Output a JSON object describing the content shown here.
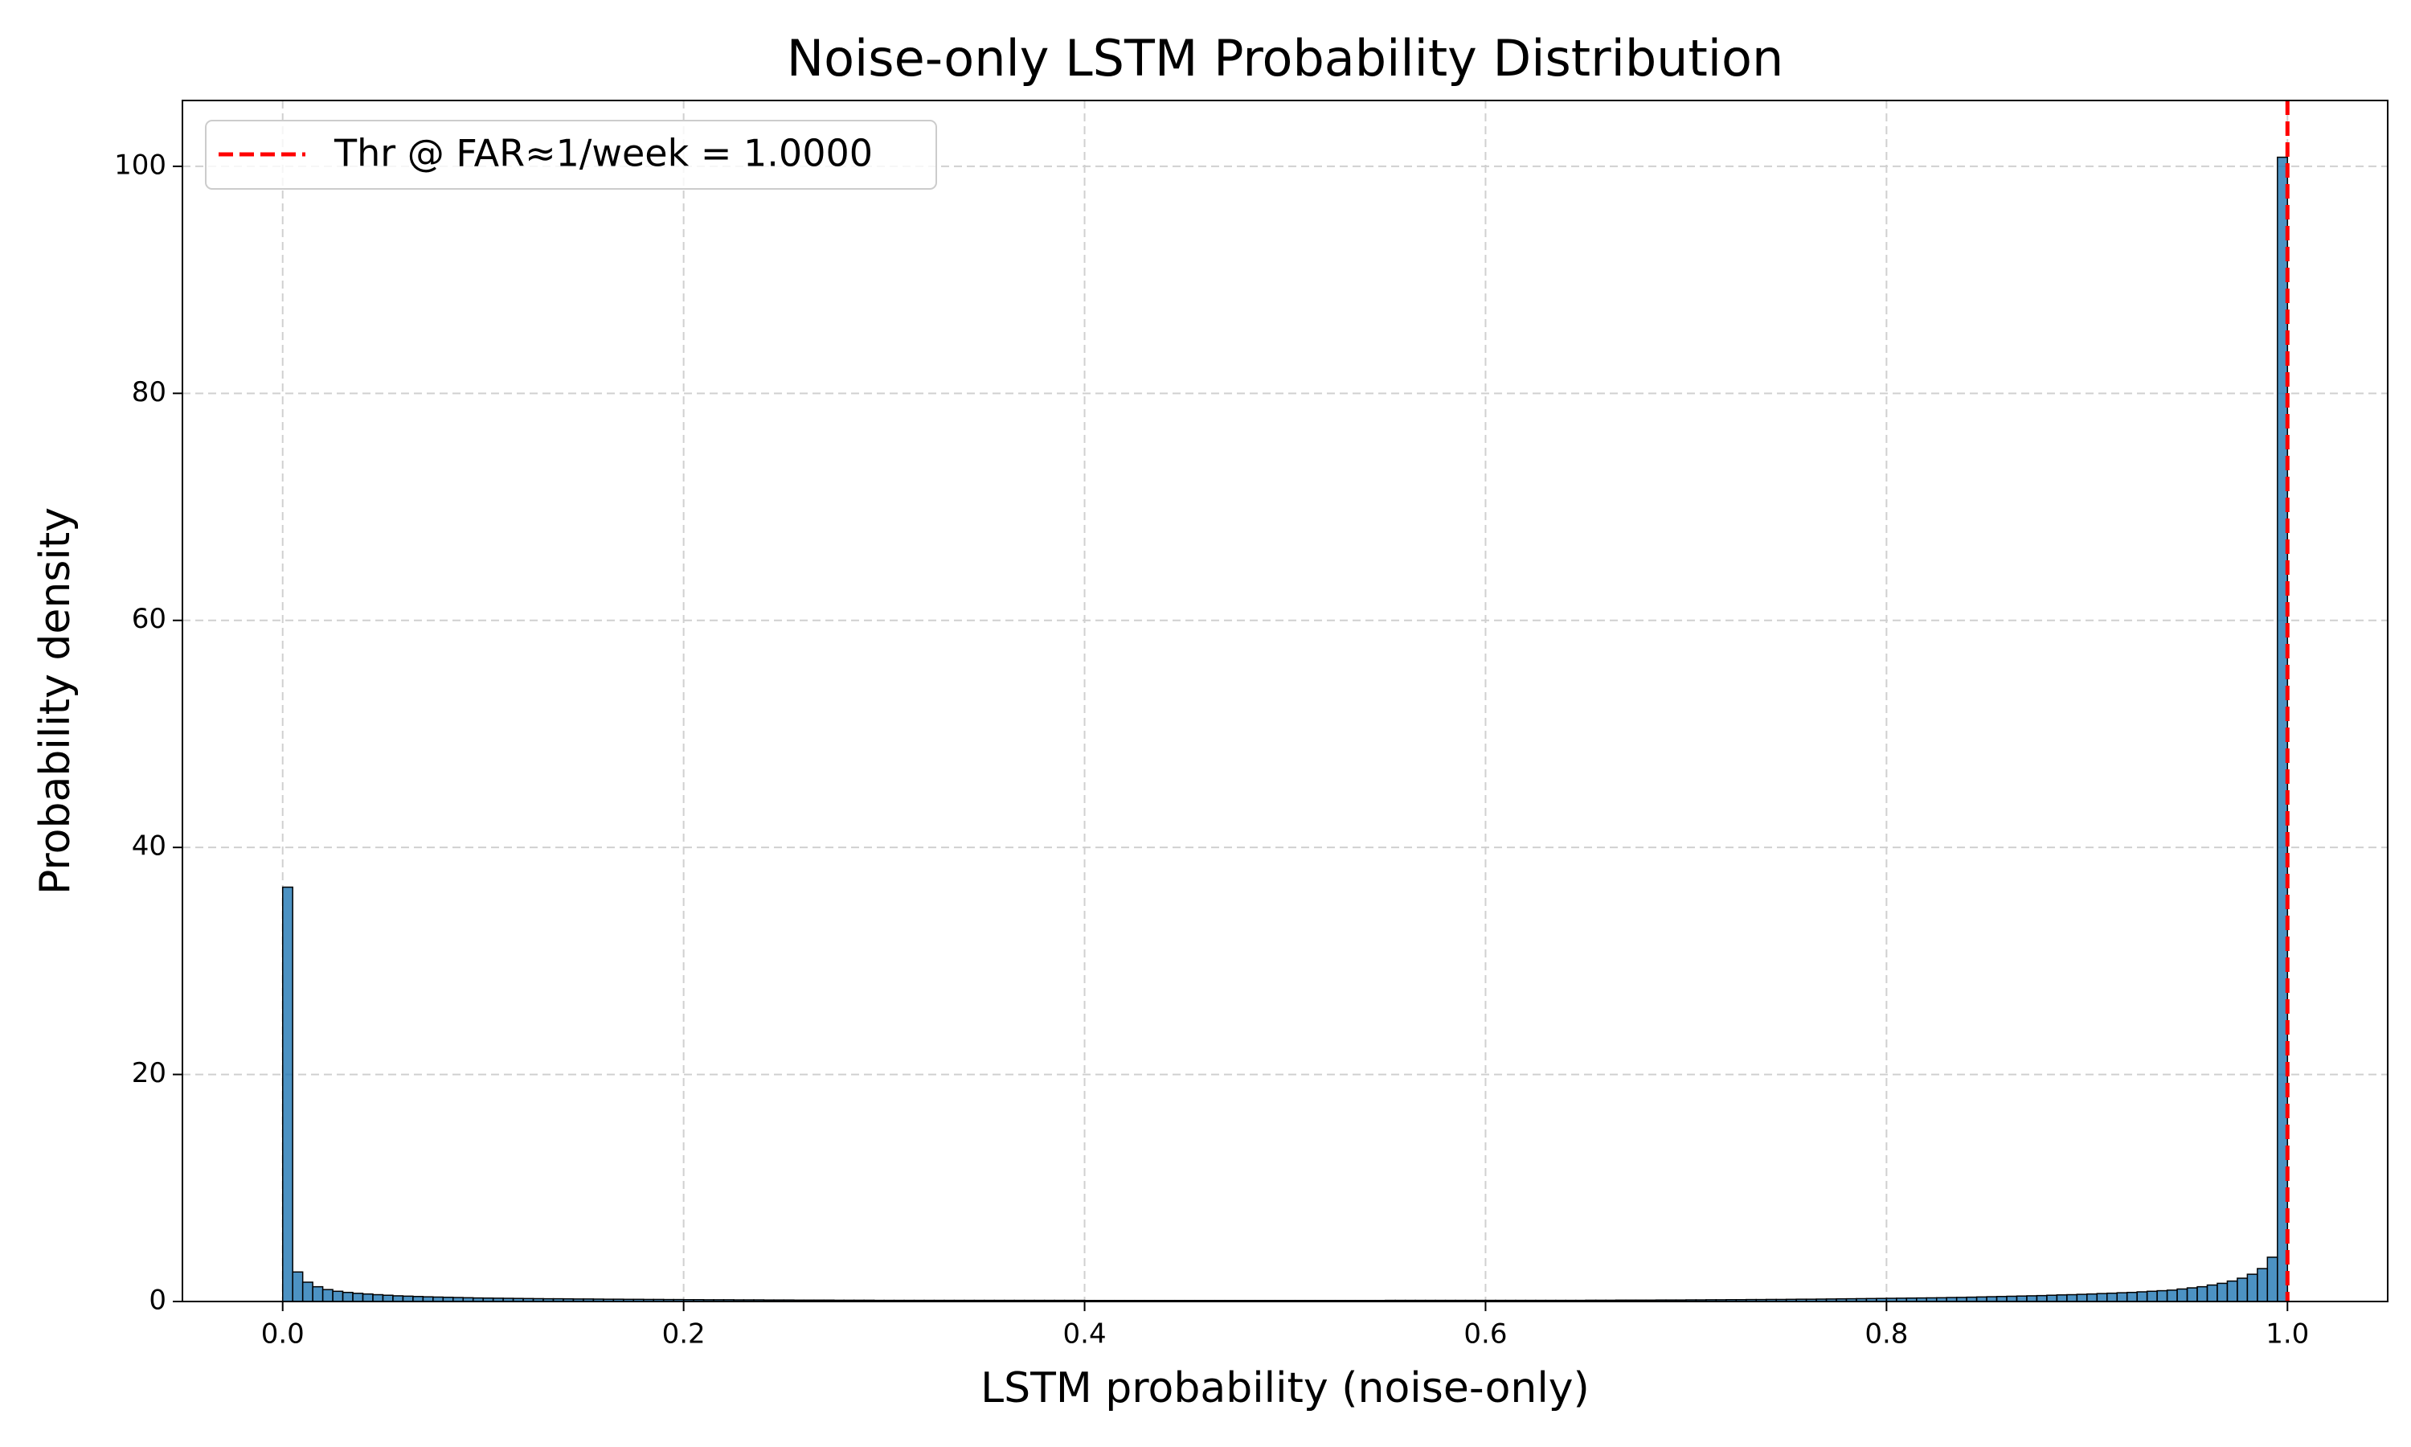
{
  "chart_data": {
    "type": "histogram",
    "title": "Noise-only LSTM Probability Distribution",
    "x_label": "LSTM probability (noise-only)",
    "y_label": "Probability density",
    "color": "#1f77b4",
    "edgecolor": "#000000",
    "grid": true,
    "legend_loc": "upper-left",
    "threshold": {
      "x": 1.0,
      "label": "Thr @ FAR≈1/week = 1.0000",
      "color": "#ff0000"
    },
    "xlim": [
      -0.05,
      1.05
    ],
    "ylim": [
      0,
      105.8
    ],
    "xticks": [
      {
        "value": 0,
        "label": "0.0"
      },
      0.2,
      0.4,
      0.6,
      0.8,
      {
        "value": 1,
        "label": "1.0"
      }
    ],
    "yticks": [
      0,
      20,
      40,
      60,
      80,
      100
    ],
    "bins": [
      0,
      0.005,
      0.01,
      0.015,
      0.02,
      0.025,
      0.03,
      0.035,
      0.04,
      0.045,
      0.05,
      0.055,
      0.06,
      0.065,
      0.07,
      0.075,
      0.08,
      0.085,
      0.09,
      0.095,
      0.1,
      0.105,
      0.11,
      0.115,
      0.12,
      0.125,
      0.13,
      0.135,
      0.14,
      0.145,
      0.15,
      0.155,
      0.16,
      0.165,
      0.17,
      0.175,
      0.18,
      0.185,
      0.19,
      0.195,
      0.2,
      0.205,
      0.21,
      0.215,
      0.22,
      0.225,
      0.23,
      0.235,
      0.24,
      0.245,
      0.25,
      0.255,
      0.26,
      0.265,
      0.27,
      0.275,
      0.28,
      0.285,
      0.29,
      0.295,
      0.3,
      0.305,
      0.31,
      0.315,
      0.32,
      0.325,
      0.33,
      0.335,
      0.34,
      0.345,
      0.35,
      0.355,
      0.36,
      0.365,
      0.37,
      0.375,
      0.38,
      0.385,
      0.39,
      0.395,
      0.4,
      0.405,
      0.41,
      0.415,
      0.42,
      0.425,
      0.43,
      0.435,
      0.44,
      0.445,
      0.45,
      0.455,
      0.46,
      0.465,
      0.47,
      0.475,
      0.48,
      0.485,
      0.49,
      0.495,
      0.5,
      0.505,
      0.51,
      0.515,
      0.52,
      0.525,
      0.53,
      0.535,
      0.54,
      0.545,
      0.55,
      0.555,
      0.56,
      0.565,
      0.57,
      0.575,
      0.58,
      0.585,
      0.59,
      0.595,
      0.6,
      0.605,
      0.61,
      0.615,
      0.62,
      0.625,
      0.63,
      0.635,
      0.64,
      0.645,
      0.65,
      0.655,
      0.66,
      0.665,
      0.67,
      0.675,
      0.68,
      0.685,
      0.69,
      0.695,
      0.7,
      0.705,
      0.71,
      0.715,
      0.72,
      0.725,
      0.73,
      0.735,
      0.74,
      0.745,
      0.75,
      0.755,
      0.76,
      0.765,
      0.77,
      0.775,
      0.78,
      0.785,
      0.79,
      0.795,
      0.8,
      0.805,
      0.81,
      0.815,
      0.82,
      0.825,
      0.83,
      0.835,
      0.84,
      0.845,
      0.85,
      0.855,
      0.86,
      0.865,
      0.87,
      0.875,
      0.88,
      0.885,
      0.89,
      0.895,
      0.9,
      0.905,
      0.91,
      0.915,
      0.92,
      0.925,
      0.93,
      0.935,
      0.94,
      0.945,
      0.95,
      0.955,
      0.96,
      0.965,
      0.97,
      0.975,
      0.98,
      0.985,
      0.99,
      0.995,
      1
    ],
    "counts": [
      36.5,
      2.6,
      1.7,
      1.3,
      1.05,
      0.9,
      0.8,
      0.72,
      0.66,
      0.6,
      0.55,
      0.5,
      0.47,
      0.44,
      0.41,
      0.39,
      0.37,
      0.35,
      0.33,
      0.31,
      0.3,
      0.29,
      0.28,
      0.27,
      0.26,
      0.25,
      0.24,
      0.24,
      0.23,
      0.22,
      0.22,
      0.21,
      0.2,
      0.2,
      0.19,
      0.19,
      0.18,
      0.18,
      0.17,
      0.17,
      0.16,
      0.16,
      0.15,
      0.15,
      0.15,
      0.14,
      0.14,
      0.14,
      0.13,
      0.13,
      0.13,
      0.12,
      0.12,
      0.12,
      0.12,
      0.11,
      0.11,
      0.11,
      0.11,
      0.1,
      0.1,
      0.1,
      0.1,
      0.1,
      0.1,
      0.1,
      0.1,
      0.1,
      0.1,
      0.1,
      0.1,
      0.1,
      0.1,
      0.1,
      0.1,
      0.1,
      0.1,
      0.1,
      0.1,
      0.1,
      0.09,
      0.09,
      0.09,
      0.09,
      0.09,
      0.09,
      0.09,
      0.09,
      0.09,
      0.09,
      0.09,
      0.09,
      0.09,
      0.09,
      0.09,
      0.09,
      0.09,
      0.09,
      0.09,
      0.09,
      0.09,
      0.09,
      0.09,
      0.09,
      0.09,
      0.09,
      0.09,
      0.09,
      0.09,
      0.09,
      0.1,
      0.1,
      0.1,
      0.1,
      0.1,
      0.1,
      0.1,
      0.1,
      0.1,
      0.1,
      0.1,
      0.1,
      0.1,
      0.1,
      0.1,
      0.1,
      0.1,
      0.1,
      0.1,
      0.1,
      0.11,
      0.11,
      0.11,
      0.12,
      0.12,
      0.12,
      0.12,
      0.13,
      0.13,
      0.13,
      0.14,
      0.14,
      0.15,
      0.15,
      0.16,
      0.16,
      0.17,
      0.17,
      0.18,
      0.18,
      0.19,
      0.2,
      0.2,
      0.21,
      0.22,
      0.23,
      0.24,
      0.25,
      0.26,
      0.27,
      0.28,
      0.29,
      0.3,
      0.31,
      0.32,
      0.33,
      0.35,
      0.36,
      0.38,
      0.4,
      0.42,
      0.44,
      0.46,
      0.48,
      0.5,
      0.52,
      0.55,
      0.58,
      0.6,
      0.63,
      0.66,
      0.7,
      0.73,
      0.77,
      0.8,
      0.85,
      0.9,
      0.95,
      1.0,
      1.1,
      1.2,
      1.3,
      1.45,
      1.6,
      1.8,
      2.05,
      2.4,
      2.9,
      3.9,
      100.8
    ]
  }
}
